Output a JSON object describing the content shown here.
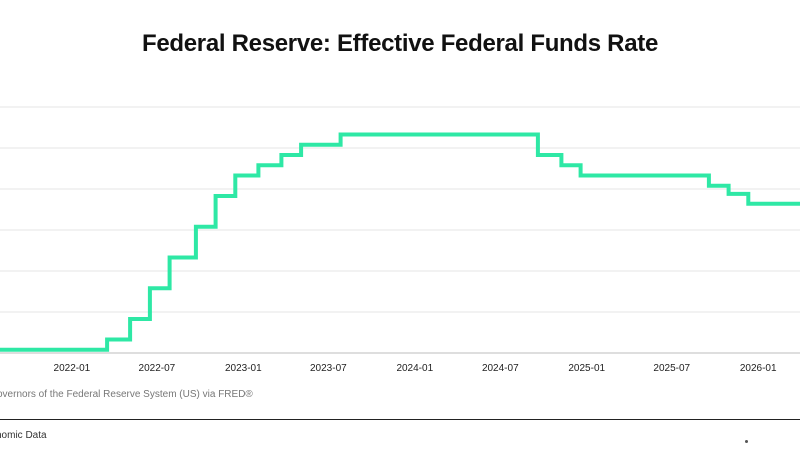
{
  "chart_data": {
    "type": "line",
    "title": "Federal Reserve: Effective Federal Funds Rate",
    "source": "overnors of the Federal Reserve System (US) via FRED®",
    "footer": "nomic Data",
    "x_ticks": [
      "2022-01",
      "2022-07",
      "2023-01",
      "2023-07",
      "2024-01",
      "2024-07",
      "2025-01",
      "2025-07",
      "2026-01"
    ],
    "x_range": [
      "2021-08-01",
      "2026-03-31"
    ],
    "ylim": [
      0,
      6
    ],
    "y_ticks": [
      0,
      1,
      2,
      3,
      4,
      5,
      6
    ],
    "grid": true,
    "line_color": "#2ee8a5",
    "series": [
      {
        "values": [
          [
            "2021-08-01",
            0.08
          ],
          [
            "2022-03-17",
            0.33
          ],
          [
            "2022-05-05",
            0.83
          ],
          [
            "2022-06-16",
            1.58
          ],
          [
            "2022-07-28",
            2.33
          ],
          [
            "2022-09-22",
            3.08
          ],
          [
            "2022-11-03",
            3.83
          ],
          [
            "2022-12-15",
            4.33
          ],
          [
            "2023-02-02",
            4.58
          ],
          [
            "2023-03-23",
            4.83
          ],
          [
            "2023-05-04",
            5.08
          ],
          [
            "2023-07-27",
            5.33
          ],
          [
            "2024-09-19",
            4.83
          ],
          [
            "2024-11-08",
            4.58
          ],
          [
            "2024-12-19",
            4.33
          ],
          [
            "2025-09-18",
            4.08
          ],
          [
            "2025-10-30",
            3.88
          ],
          [
            "2025-12-11",
            3.64
          ],
          [
            "2026-03-31",
            3.64
          ]
        ]
      }
    ]
  }
}
